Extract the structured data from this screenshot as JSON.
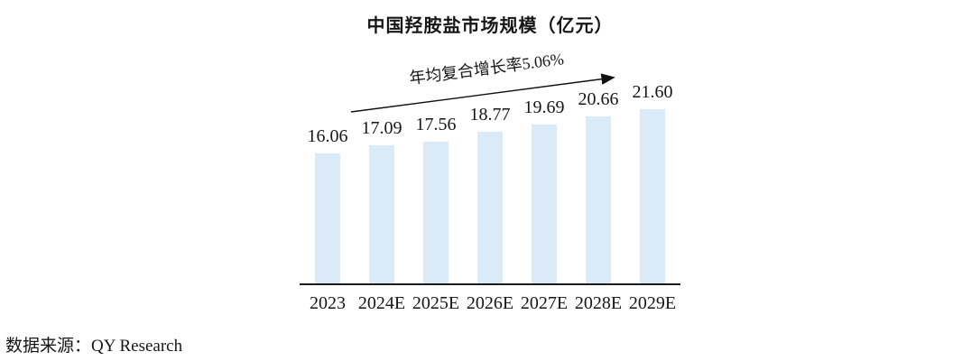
{
  "chart_data": {
    "type": "bar",
    "title": "中国羟胺盐市场规模（亿元）",
    "categories": [
      "2023",
      "2024E",
      "2025E",
      "2026E",
      "2027E",
      "2028E",
      "2029E"
    ],
    "values": [
      16.06,
      17.09,
      17.56,
      18.77,
      19.69,
      20.66,
      21.6
    ],
    "value_labels": [
      "16.06",
      "17.09",
      "17.56",
      "18.77",
      "19.69",
      "20.66",
      "21.60"
    ],
    "annotation": "年均复合增长率5.06%",
    "xlabel": "",
    "ylabel": "",
    "ylim": [
      0,
      23
    ],
    "grid": false,
    "legend": false,
    "bar_color": "#DAEAF6",
    "axis_color": "#1B1B1B",
    "text_color": "#161616"
  },
  "source_note": "数据来源：QY Research"
}
